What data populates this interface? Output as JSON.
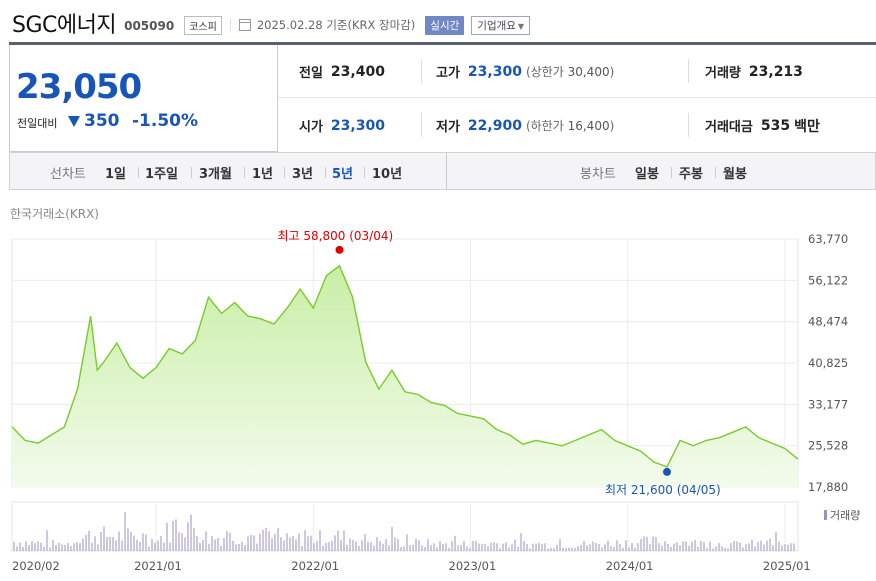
{
  "header": {
    "company_name": "SGC에너지",
    "code": "005090",
    "market": "코스피",
    "date": "2025.02.28",
    "basis": "기준(KRX 장마감)",
    "realtime_label": "실시간",
    "company_info_label": "기업개요"
  },
  "price": {
    "current": "23,050",
    "change_label": "전일대비",
    "change": "350",
    "change_pct": "-1.50%",
    "direction": "down"
  },
  "stats": {
    "prev_close": {
      "label": "전일",
      "value": "23,400"
    },
    "high": {
      "label": "고가",
      "value": "23,300",
      "limit_label": "상한가",
      "limit_value": "30,400"
    },
    "volume": {
      "label": "거래량",
      "value": "23,213"
    },
    "open": {
      "label": "시가",
      "value": "23,300"
    },
    "low": {
      "label": "저가",
      "value": "22,900",
      "limit_label": "하한가",
      "limit_value": "16,400"
    },
    "trade_value": {
      "label": "거래대금",
      "value": "535",
      "unit": "백만"
    }
  },
  "tabs": {
    "line_chart_label": "선차트",
    "line_periods": [
      "1일",
      "1주일",
      "3개월",
      "1년",
      "3년",
      "5년",
      "10년"
    ],
    "active_period": "5년",
    "candle_chart_label": "봉차트",
    "candle_periods": [
      "일봉",
      "주봉",
      "월봉"
    ]
  },
  "source_label": "한국거래소(KRX)",
  "colors": {
    "accent": "#1955b7",
    "up": "#dd0000",
    "line": "#77cc2c",
    "fill": "#dff5c8",
    "volume": "#9d8fc0"
  },
  "chart_data": {
    "type": "area",
    "x_ticks": [
      "2020/02",
      "2021/01",
      "2022/01",
      "2023/01",
      "2024/01",
      "2025/01"
    ],
    "y_ticks": [
      "63,770",
      "56,122",
      "48,474",
      "40,825",
      "33,177",
      "25,528",
      "17,880"
    ],
    "ylim": [
      17880,
      63770
    ],
    "xlim": [
      "2020/02",
      "2025/02"
    ],
    "annotations": {
      "high": {
        "label": "최고",
        "value": "58,800",
        "date": "03/04"
      },
      "low": {
        "label": "최저",
        "value": "21,600",
        "date": "04/05"
      }
    },
    "volume_legend": "거래량",
    "series": [
      {
        "x": [
          "2020/02",
          "2020/03",
          "2020/04",
          "2020/05",
          "2020/06",
          "2020/07",
          "2020/08",
          "2020/08",
          "2020/09",
          "2020/10",
          "2020/11",
          "2020/12",
          "2021/01",
          "2021/02",
          "2021/03",
          "2021/04",
          "2021/05",
          "2021/06",
          "2021/07",
          "2021/08",
          "2021/09",
          "2021/10",
          "2021/11",
          "2021/12",
          "2022/01",
          "2022/02",
          "2022/03",
          "2022/04",
          "2022/05",
          "2022/06",
          "2022/07",
          "2022/08",
          "2022/09",
          "2022/10",
          "2022/11",
          "2022/12",
          "2023/01",
          "2023/02",
          "2023/03",
          "2023/04",
          "2023/05",
          "2023/06",
          "2023/07",
          "2023/08",
          "2023/09",
          "2023/10",
          "2023/11",
          "2023/12",
          "2024/01",
          "2024/02",
          "2024/03",
          "2024/04",
          "2024/05",
          "2024/06",
          "2024/07",
          "2024/08",
          "2024/09",
          "2024/10",
          "2024/11",
          "2024/12",
          "2025/01",
          "2025/02"
        ],
        "values": [
          29000,
          26500,
          26000,
          27500,
          29000,
          36000,
          49500,
          39500,
          41000,
          44500,
          40000,
          38000,
          40000,
          43500,
          42500,
          45000,
          53000,
          50000,
          52000,
          49500,
          49000,
          48000,
          51000,
          54500,
          51000,
          57000,
          58800,
          53000,
          41000,
          36000,
          39500,
          35500,
          35000,
          33500,
          33000,
          31500,
          31000,
          30500,
          28500,
          27500,
          25800,
          26500,
          26000,
          25500,
          26500,
          27500,
          28500,
          26500,
          25500,
          24500,
          22500,
          21600,
          26500,
          25500,
          26500,
          27000,
          28000,
          29000,
          27000,
          26000,
          25000,
          23050
        ]
      }
    ],
    "volume_series": {
      "x": [
        "2020/02",
        "2020/06",
        "2020/08",
        "2020/12",
        "2021/01",
        "2021/03",
        "2021/05",
        "2021/08",
        "2021/11",
        "2022/01",
        "2022/03",
        "2022/06",
        "2022/09",
        "2022/12",
        "2023/03",
        "2023/06",
        "2023/09",
        "2023/12",
        "2024/03",
        "2024/06",
        "2024/09",
        "2024/12",
        "2025/02"
      ],
      "values": [
        0.3,
        0.2,
        0.5,
        0.45,
        0.3,
        1.0,
        0.4,
        0.5,
        0.35,
        0.4,
        0.45,
        0.3,
        0.25,
        0.2,
        0.25,
        0.2,
        0.2,
        0.25,
        0.3,
        0.25,
        0.2,
        0.25,
        0.15
      ]
    }
  }
}
